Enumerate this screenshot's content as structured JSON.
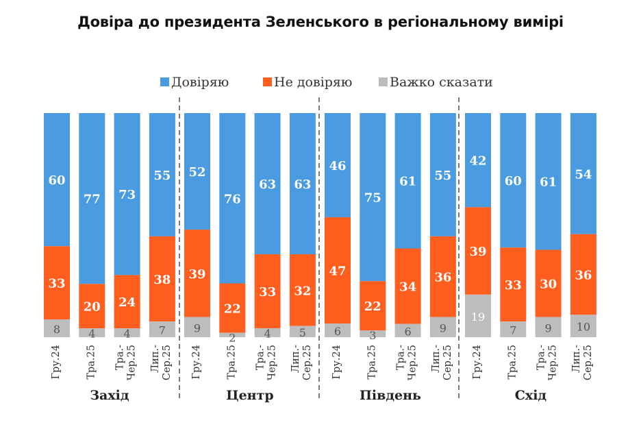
{
  "title": "Довіра до президента Зеленського в регіональному вимірі",
  "colors": {
    "trust": "#4a9be0",
    "distrust": "#ff5e1f",
    "hard": "#bdbdbd",
    "divider": "#777777"
  },
  "chart_data": {
    "type": "bar",
    "stacked": true,
    "title": "Довіра до президента Зеленського в регіональному вимірі",
    "legend": [
      "Довіряю",
      "Не довіряю",
      "Важко сказати"
    ],
    "legend_position": "top",
    "groups": [
      {
        "region": "Захід",
        "periods": [
          {
            "label": "Гру.24",
            "trust": 60,
            "distrust": 33,
            "hard": 8
          },
          {
            "label": "Тра.25",
            "trust": 77,
            "distrust": 20,
            "hard": 4
          },
          {
            "label": "Тра.-Чер.25",
            "trust": 73,
            "distrust": 24,
            "hard": 4
          },
          {
            "label": "Лип.-Сер.25",
            "trust": 55,
            "distrust": 38,
            "hard": 7
          }
        ]
      },
      {
        "region": "Центр",
        "periods": [
          {
            "label": "Гру.24",
            "trust": 52,
            "distrust": 39,
            "hard": 9
          },
          {
            "label": "Тра.25",
            "trust": 76,
            "distrust": 22,
            "hard": 2
          },
          {
            "label": "Тра.-Чер.25",
            "trust": 63,
            "distrust": 33,
            "hard": 4
          },
          {
            "label": "Лип.-Сер.25",
            "trust": 63,
            "distrust": 32,
            "hard": 5
          }
        ]
      },
      {
        "region": "Південь",
        "periods": [
          {
            "label": "Гру.24",
            "trust": 46,
            "distrust": 47,
            "hard": 6
          },
          {
            "label": "Тра.25",
            "trust": 75,
            "distrust": 22,
            "hard": 3
          },
          {
            "label": "Тра.-Чер.25",
            "trust": 61,
            "distrust": 34,
            "hard": 6
          },
          {
            "label": "Лип.-Сер.25",
            "trust": 55,
            "distrust": 36,
            "hard": 9
          }
        ]
      },
      {
        "region": "Схід",
        "periods": [
          {
            "label": "Гру.24",
            "trust": 42,
            "distrust": 39,
            "hard": 19
          },
          {
            "label": "Тра.25",
            "trust": 60,
            "distrust": 33,
            "hard": 7
          },
          {
            "label": "Тра.-Чер.25",
            "trust": 61,
            "distrust": 30,
            "hard": 9
          },
          {
            "label": "Лип.-Сер.25",
            "trust": 54,
            "distrust": 36,
            "hard": 10
          }
        ]
      }
    ]
  }
}
